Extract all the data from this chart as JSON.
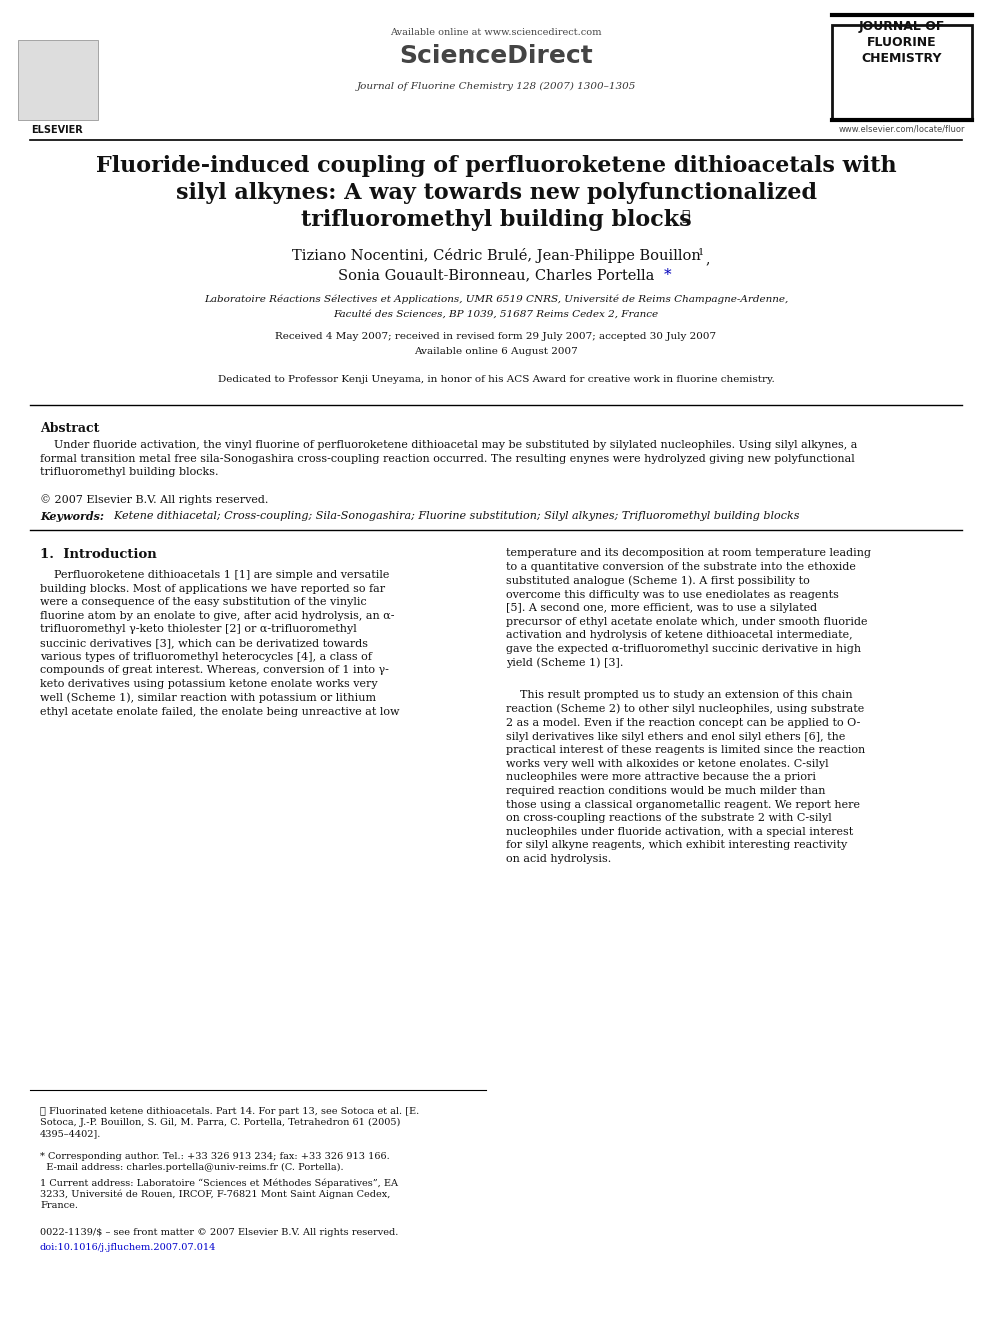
{
  "background_color": "#ffffff",
  "page_width": 9.92,
  "page_height": 13.23,
  "dpi": 100,
  "header": {
    "available_online": "Available online at www.sciencedirect.com",
    "sciencedirect": "ScienceDirect",
    "journal_name": "Journal of Fluorine Chemistry 128 (2007) 1300–1305",
    "elsevier": "ELSEVIER",
    "journal_box": "JOURNAL OF\nFLUORINE\nCHEMISTRY",
    "website": "www.elsevier.com/locate/fluor"
  },
  "title_line1": "Fluoride-induced coupling of perfluoroketene dithioacetals with",
  "title_line2": "silyl alkynes: A way towards new polyfunctionalized",
  "title_line3": "trifluoromethyl building blocks",
  "title_star": "⋆",
  "authors_line1": "Tiziano Nocentini, Cédric Brulé, Jean-Philippe Bouillon",
  "authors_sup1": "1",
  "authors_comma": ",",
  "authors_line2": "Sonia Gouault-Bironneau, Charles Portella",
  "authors_star": "*",
  "affiliation_line1": "Laboratoire Réactions Sélectives et Applications, UMR 6519 CNRS, Université de Reims Champagne-Ardenne,",
  "affiliation_line2": "Faculté des Sciences, BP 1039, 51687 Reims Cedex 2, France",
  "received": "Received 4 May 2007; received in revised form 29 July 2007; accepted 30 July 2007",
  "available": "Available online 6 August 2007",
  "dedication": "Dedicated to Professor Kenji Uneyama, in honor of his ACS Award for creative work in fluorine chemistry.",
  "abstract_title": "Abstract",
  "abstract_body": "    Under fluoride activation, the vinyl fluorine of perfluoroketene dithioacetal may be substituted by silylated nucleophiles. Using silyl alkynes, a\nformal transition metal free sila-Sonogashira cross-coupling reaction occurred. The resulting enynes were hydrolyzed giving new polyfunctional\ntrifluoromethyl building blocks.",
  "copyright": "© 2007 Elsevier B.V. All rights reserved.",
  "keywords_label": "Keywords:",
  "keywords_text": "  Ketene dithiacetal; Cross-coupling; Sila-Sonogashira; Fluorine substitution; Silyl alkynes; Trifluoromethyl building blocks",
  "section1_title": "1.  Introduction",
  "col1_para1": "    Perfluoroketene dithioacetals 1 [1] are simple and versatile\nbuilding blocks. Most of applications we have reported so far\nwere a consequence of the easy substitution of the vinylic\nfluorine atom by an enolate to give, after acid hydrolysis, an α-\ntrifluoromethyl γ-keto thiolester [2] or α-trifluoromethyl\nsuccinic derivatives [3], which can be derivatized towards\nvarious types of trifluoromethyl heterocycles [4], a class of\ncompounds of great interest. Whereas, conversion of 1 into γ-\nketo derivatives using potassium ketone enolate works very\nwell (Scheme 1), similar reaction with potassium or lithium\nethyl acetate enolate failed, the enolate being unreactive at low",
  "col2_para1": "temperature and its decomposition at room temperature leading\nto a quantitative conversion of the substrate into the ethoxide\nsubstituted analogue (Scheme 1). A first possibility to\novercome this difficulty was to use enediolates as reagents\n[5]. A second one, more efficient, was to use a silylated\nprecursor of ethyl acetate enolate which, under smooth fluoride\nactivation and hydrolysis of ketene dithioacetal intermediate,\ngave the expected α-trifluoromethyl succinic derivative in high\nyield (Scheme 1) [3].",
  "col2_para2": "    This result prompted us to study an extension of this chain\nreaction (Scheme 2) to other silyl nucleophiles, using substrate\n2 as a model. Even if the reaction concept can be applied to O-\nsilyl derivatives like silyl ethers and enol silyl ethers [6], the\npractical interest of these reagents is limited since the reaction\nworks very well with alkoxides or ketone enolates. C-silyl\nnucleophiles were more attractive because the a priori\nrequired reaction conditions would be much milder than\nthose using a classical organometallic reagent. We report here\non cross-coupling reactions of the substrate 2 with C-silyl\nnucleophiles under fluoride activation, with a special interest\nfor silyl alkyne reagents, which exhibit interesting reactivity\non acid hydrolysis.",
  "fn_star": "⋆ Fluorinated ketene dithioacetals. Part 14. For part 13, see Sotoca et al. [E.\nSotoca, J.-P. Bouillon, S. Gil, M. Parra, C. Portella, Tetrahedron 61 (2005)\n4395–4402].",
  "fn_corr": "* Corresponding author. Tel.: +33 326 913 234; fax: +33 326 913 166.\n  E-mail address: charles.portella@univ-reims.fr (C. Portella).",
  "fn_1": "1 Current address: Laboratoire “Sciences et Méthodes Séparatives”, EA\n3233, Université de Rouen, IRCOF, F-76821 Mont Saint Aignan Cedex,\nFrance.",
  "issn": "0022-1139/$ – see front matter © 2007 Elsevier B.V. All rights reserved.",
  "doi": "doi:10.1016/j.jfluchem.2007.07.014",
  "doi_color": "#0000cc"
}
